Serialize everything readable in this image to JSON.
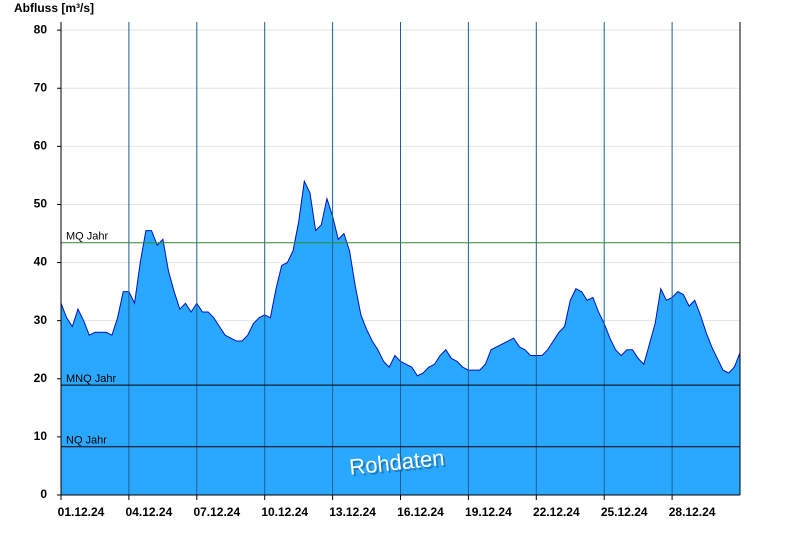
{
  "chart_data": {
    "type": "area",
    "y_label": "Abfluss [m³/s]",
    "watermark": "Rohdaten",
    "color": "#2aa8ff",
    "line_color": "#0010c0",
    "grid": true,
    "xlim": [
      0,
      30
    ],
    "ylim": [
      0,
      81.4
    ],
    "yticks": [
      0,
      10,
      20,
      30,
      40,
      50,
      60,
      70,
      80
    ],
    "xticks": [
      {
        "value": 0,
        "label": "01.12.24"
      },
      {
        "value": 3,
        "label": "04.12.24"
      },
      {
        "value": 6,
        "label": "07.12.24"
      },
      {
        "value": 9,
        "label": "10.12.24"
      },
      {
        "value": 12,
        "label": "13.12.24"
      },
      {
        "value": 15,
        "label": "16.12.24"
      },
      {
        "value": 18,
        "label": "19.12.24"
      },
      {
        "value": 21,
        "label": "22.12.24"
      },
      {
        "value": 24,
        "label": "25.12.24"
      },
      {
        "value": 27,
        "label": "28.12.24"
      }
    ],
    "reference_lines": [
      {
        "label": "MQ Jahr",
        "value": 43.4,
        "color": "#2e8b2e"
      },
      {
        "label": "MNQ Jahr",
        "value": 18.9,
        "color": "#000000"
      },
      {
        "label": "NQ Jahr",
        "value": 8.3,
        "color": "#000000"
      }
    ],
    "x": [
      0,
      0.25,
      0.5,
      0.75,
      1,
      1.25,
      1.5,
      1.75,
      2,
      2.25,
      2.5,
      2.75,
      3,
      3.25,
      3.5,
      3.75,
      4,
      4.25,
      4.5,
      4.75,
      5,
      5.25,
      5.5,
      5.75,
      6,
      6.25,
      6.5,
      6.75,
      7,
      7.25,
      7.5,
      7.75,
      8,
      8.25,
      8.5,
      8.75,
      9,
      9.25,
      9.5,
      9.75,
      10,
      10.25,
      10.5,
      10.75,
      11,
      11.25,
      11.5,
      11.75,
      12,
      12.25,
      12.5,
      12.75,
      13,
      13.25,
      13.5,
      13.75,
      14,
      14.25,
      14.5,
      14.75,
      15,
      15.25,
      15.5,
      15.75,
      16,
      16.25,
      16.5,
      16.75,
      17,
      17.25,
      17.5,
      17.75,
      18,
      18.25,
      18.5,
      18.75,
      19,
      19.25,
      19.5,
      19.75,
      20,
      20.25,
      20.5,
      20.75,
      21,
      21.25,
      21.5,
      21.75,
      22,
      22.25,
      22.5,
      22.75,
      23,
      23.25,
      23.5,
      23.75,
      24,
      24.25,
      24.5,
      24.75,
      25,
      25.25,
      25.5,
      25.75,
      26,
      26.25,
      26.5,
      26.75,
      27,
      27.25,
      27.5,
      27.75,
      28,
      28.25,
      28.5,
      28.75,
      29,
      29.25,
      29.5,
      29.75,
      30
    ],
    "values": [
      33,
      30.5,
      29,
      32,
      30,
      27.5,
      28,
      28,
      28,
      27.5,
      30.5,
      35,
      35,
      33,
      40,
      45.5,
      45.5,
      43,
      44,
      38.5,
      35,
      32,
      33,
      31.5,
      33,
      31.5,
      31.5,
      30.5,
      29,
      27.5,
      27,
      26.5,
      26.5,
      27.5,
      29.5,
      30.5,
      31,
      30.5,
      35.5,
      39.5,
      40,
      42,
      47,
      54,
      52,
      45.5,
      46.5,
      51,
      48,
      44,
      45,
      42,
      36,
      31,
      28.5,
      26.5,
      25,
      23,
      22,
      24,
      23,
      22.5,
      22,
      20.5,
      21,
      22,
      22.5,
      24,
      25,
      23.5,
      23,
      22,
      21.5,
      21.5,
      21.5,
      22.5,
      25,
      25.5,
      26,
      26.5,
      27,
      25.5,
      25,
      24,
      24,
      24,
      25,
      26.5,
      28,
      29,
      33.5,
      35.5,
      35,
      33.5,
      34,
      31.5,
      29.5,
      27,
      25,
      24,
      25,
      25,
      23.5,
      22.5,
      26,
      29.5,
      35.5,
      33.5,
      34,
      35,
      34.5,
      32.5,
      33.5,
      31,
      28,
      25.5,
      23.5,
      21.5,
      21,
      22,
      24.5
    ]
  }
}
